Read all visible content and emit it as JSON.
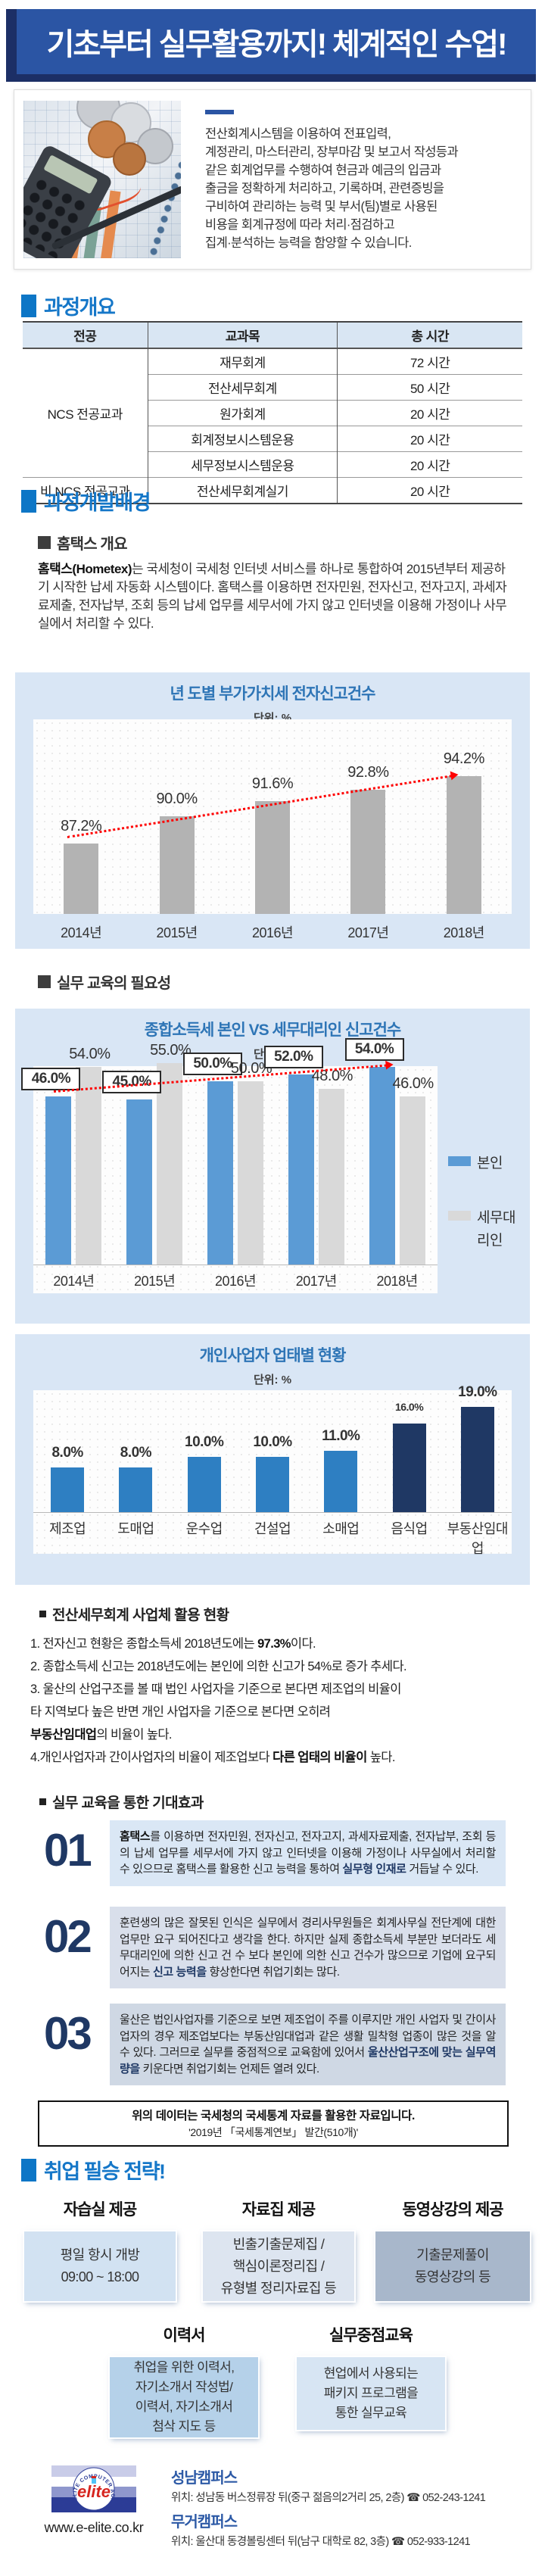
{
  "banner": {
    "title": "기초부터 실무활용까지! 체계적인 수업!"
  },
  "intro": {
    "text": "전산회계시스템을 이용하여 전표입력,\n계정관리, 마스터관리, 장부마감 및 보고서 작성등과\n같은 회계업무를 수행하여 현금과 예금의 입금과\n출금을 정확하게 처리하고, 기록하며, 관련증빙을\n구비하여 관리하는 능력 및 부서(팀)별로 사용된\n비용을 회계규정에 따라 처리·점검하고\n집계·분석하는 능력을 함양할 수 있습니다."
  },
  "sections": {
    "overview_title": "과정개요",
    "background_title": "과정개발배경",
    "hometex_subtitle": "홈택스 개요",
    "need_subtitle": "실무 교육의 필요성",
    "usage_title": "전산세무회계 사업체 활용 현황",
    "expect_title": "실무 교육을 통한 기대효과",
    "strategy_title": "취업 필승 전략!"
  },
  "course_table": {
    "headers": [
      "전공",
      "교과목",
      "총 시간"
    ],
    "groups": [
      {
        "major": "NCS 전공교과",
        "rows": [
          [
            "재무회계",
            "72 시간"
          ],
          [
            "전산세무회계",
            "50 시간"
          ],
          [
            "원가회계",
            "20 시간"
          ],
          [
            "회계정보시스템운용",
            "20 시간"
          ],
          [
            "세무정보시스템운용",
            "20 시간"
          ]
        ]
      },
      {
        "major": "비 NCS 전공교과",
        "rows": [
          [
            "전산세무회계실기",
            "20 시간"
          ]
        ]
      }
    ]
  },
  "hometex_paragraph": [
    {
      "t": "홈택스(Hometex)",
      "b": true
    },
    {
      "t": "는 국세청이 국세청 인터넷 서비스를 하나로 통합하여 2015년부터 제공하기 시작한 납세 자동화 시스템이다. 홈택스를 이용하면 전자민원, 전자신고, 전자고지, 과세자료제출, 전자납부, 조회 등의 납세 업무를 세무서에 가지 않고 인터넷을 이용해 가정이나 사무실에서 처리할 수 있다."
    }
  ],
  "chart_data": [
    {
      "id": "vat",
      "type": "bar",
      "title": "년 도별 부가가치세 전자신고건수",
      "subtitle": "단위: %",
      "categories": [
        "2014년",
        "2015년",
        "2016년",
        "2017년",
        "2018년"
      ],
      "values": [
        87.2,
        90.0,
        91.6,
        92.8,
        94.2
      ],
      "labels": [
        "87.2%",
        "90.0%",
        "91.6%",
        "92.8%",
        "94.2%"
      ],
      "ylim": [
        80,
        100
      ],
      "bar_color": "#b3b3b3",
      "trend_arrow": true,
      "grid": "dotted",
      "legend": "none"
    },
    {
      "id": "income",
      "type": "grouped-bar",
      "title": "종합소득세 본인 VS 세무대리인 신고건수",
      "subtitle": "단위: %",
      "categories": [
        "2014년",
        "2015년",
        "2016년",
        "2017년",
        "2018년"
      ],
      "series": [
        {
          "name": "본인",
          "color": "#5b9bd5",
          "values": [
            46,
            45,
            50,
            52,
            54
          ],
          "labels": [
            "46.0%",
            "45.0%",
            "50.0%",
            "52.0%",
            "54.0%"
          ],
          "boxed_labels": true
        },
        {
          "name": "세무대리인",
          "color": "#d9d9d9",
          "values": [
            54,
            55,
            50,
            48,
            46
          ],
          "labels": [
            "54.0%",
            "55.0%",
            "50.0%",
            "48.0%",
            "46.0%"
          ],
          "boxed_labels": false
        }
      ],
      "ylim": [
        0,
        60
      ],
      "trend_arrow": true,
      "legend": "right"
    },
    {
      "id": "biz",
      "type": "bar",
      "title": "개인사업자 업태별 현황",
      "subtitle": "단위: %",
      "categories": [
        "제조업",
        "도매업",
        "운수업",
        "건설업",
        "소매업",
        "음식업",
        "부동산임대업"
      ],
      "values": [
        8,
        8,
        10,
        10,
        11,
        16,
        19
      ],
      "labels": [
        "8.0%",
        "8.0%",
        "10.0%",
        "10.0%",
        "11.0%",
        "16.0%",
        "19.0%"
      ],
      "colors": [
        "#2e7fc2",
        "#2e7fc2",
        "#2e7fc2",
        "#2e7fc2",
        "#2e7fc2",
        "#1f3864",
        "#1f3864"
      ],
      "ylim": [
        0,
        22
      ],
      "legend": "none"
    }
  ],
  "usage_items": [
    [
      {
        "t": "1. 전자신고 현황은 종합소득세 2018년도에는 "
      },
      {
        "t": "97.3%",
        "b": true
      },
      {
        "t": "이다."
      }
    ],
    [
      {
        "t": "2. 종합소득세 신고는 2018년도에는 본인에 의한 신고가 54%로 증가 추세다."
      }
    ],
    [
      {
        "t": "3. 울산의 산업구조를 볼 때 법인 사업자을 기준으로 본다면 제조업의 비율이\n    타 지역보다 높은 반면 개인 사업자을 기준으로 본다면 오히려\n    "
      },
      {
        "t": "부동산임대업",
        "b": true
      },
      {
        "t": "의 비율이 높다."
      }
    ],
    [
      {
        "t": "4.개인사업자과 간이사업자의 비율이 제조업보다 "
      },
      {
        "t": "다른 업태의 비율이",
        "b": true
      },
      {
        "t": " 높다."
      }
    ]
  ],
  "expect_items": [
    {
      "num": "01",
      "segments": [
        {
          "t": "홈택스",
          "b": true
        },
        {
          "t": "를 이용하면 전자민원, 전자신고, 전자고지, 과세자료제출, 전자납부, 조회 등의 납세 업무를 세무서에 가지 않고 인터넷을 이용해 가정이나 사무실에서 처리할 수 있으므로 홈택스를 활용한 신고 능력을 통하여 "
        },
        {
          "t": "실무형 인재로",
          "bn": true
        },
        {
          "t": " 거듭날 수 있다."
        }
      ]
    },
    {
      "num": "02",
      "segments": [
        {
          "t": "훈련생의 많은 잘못된 인식은 실무에서 경리사무원들은 회계사무실 전단계에 대한 업무만 요구 되어진다고 생각을 한다. 하지만 실제 종합소득세 부분만 보더라도 세무대리인에 의한 신고 건 수 보다 본인에 의한 신고 건수가 많으므로 기업에 요구되어지는 "
        },
        {
          "t": "신고 능력을",
          "bn": true
        },
        {
          "t": " 향상한다면 취업기회는 많다."
        }
      ]
    },
    {
      "num": "03",
      "segments": [
        {
          "t": "울산은 법인사업자를 기준으로 보면 제조업이 주를 이루지만 개인 사업자 및 간이사업자의 경우 제조업보다는 부동산임대업과 같은 생활 밀착형 업종이 많은 것을 알 수 있다. 그러므로 실무를 중점적으로 교육함에 있어서 "
        },
        {
          "t": "울산산업구조에 맞는 실무역량을",
          "bn": true
        },
        {
          "t": " 키운다면 취업기회는 언제든 열려 있다."
        }
      ]
    }
  ],
  "note_box": {
    "line1": "위의 데이터는 국세청의 국세통계 자료를 활용한 자료입니다.",
    "line2": "'2019년 「국세통계연보」 발간(510개)'"
  },
  "strategy": {
    "columns": [
      {
        "title": "자습실 제공",
        "body": "평일 항시 개방\n09:00 ~ 18:00"
      },
      {
        "title": "자료집 제공",
        "body": "빈출기출문제집 /\n핵심이론정리집 /\n유형별 정리자료집 등"
      },
      {
        "title": "동영상강의 제공",
        "body": "기출문제풀이\n동영상강의 등"
      },
      {
        "title": "이력서",
        "body": "취업을 위한 이력서,\n자기소개서 작성법/\n이력서, 자기소개서\n첨삭 지도 등"
      },
      {
        "title": "실무중점교육",
        "body": "현업에서 사용되는\n패키지 프로그램을\n통한 실무교육"
      }
    ]
  },
  "footer": {
    "logo_ring_text": "ELITE COMPUTER ACADEMY",
    "logo_word": "elite",
    "website": "www.e-elite.co.kr",
    "campuses": [
      {
        "name": "성남캠퍼스",
        "address": "위치: 성남동 버스정류장 뒤(중구 젊음의2거리 25, 2층) ☎ 052-243-1241"
      },
      {
        "name": "무거캠퍼스",
        "address": "위치: 울산대 동경볼링센터 뒤(남구 대학로 82, 3층) ☎ 052-933-1241"
      }
    ]
  },
  "colors": {
    "banner_blue": "#2b55a4",
    "banner_dark": "#1c2f66",
    "heading_blue": "#1577c8",
    "chart_card_bg": "#d9e6f5",
    "chart_title": "#2e75b6",
    "trend_red": "#fe0000",
    "navy_accent": "#1f3864"
  }
}
